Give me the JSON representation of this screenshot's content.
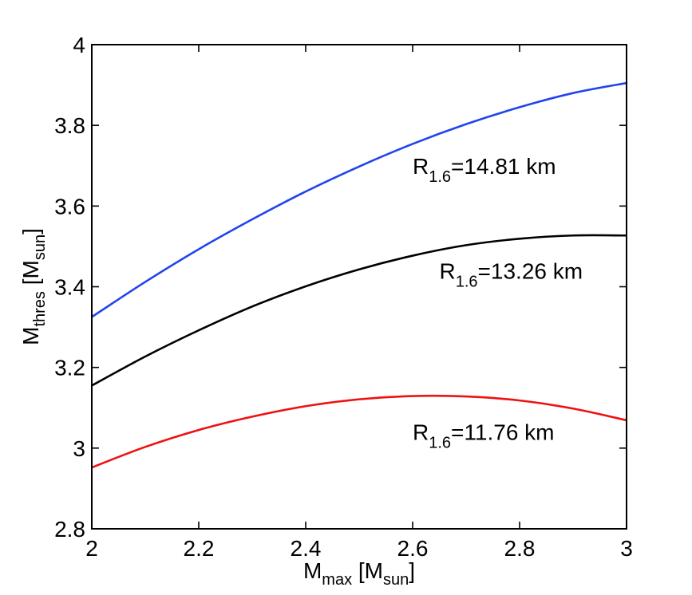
{
  "chart_data": {
    "type": "line",
    "xlabel": {
      "main": "M",
      "sub": "max",
      "unit_open": " [M",
      "unit_sub": "sun",
      "unit_close": "]"
    },
    "ylabel": {
      "main": "M",
      "sub": "thres",
      "unit_open": " [M",
      "unit_sub": "sun",
      "unit_close": "]"
    },
    "xlim": [
      2,
      3
    ],
    "ylim": [
      2.8,
      4
    ],
    "xticks": [
      2,
      2.2,
      2.4,
      2.6,
      2.8,
      3
    ],
    "xtick_labels": [
      "2",
      "2.2",
      "2.4",
      "2.6",
      "2.8",
      "3"
    ],
    "yticks": [
      2.8,
      3,
      3.2,
      3.4,
      3.6,
      3.8,
      4
    ],
    "ytick_labels": [
      "2.8",
      "3",
      "3.2",
      "3.4",
      "3.6",
      "3.8",
      "4"
    ],
    "grid": false,
    "series": [
      {
        "color": "#2244ee",
        "x": [
          2.0,
          2.1,
          2.2,
          2.3,
          2.4,
          2.5,
          2.6,
          2.7,
          2.8,
          2.9,
          3.0
        ],
        "values": [
          3.325,
          3.412,
          3.493,
          3.567,
          3.636,
          3.698,
          3.754,
          3.803,
          3.845,
          3.88,
          3.905
        ]
      },
      {
        "color": "#000000",
        "x": [
          2.0,
          2.1,
          2.2,
          2.3,
          2.4,
          2.5,
          2.6,
          2.7,
          2.8,
          2.9,
          3.0
        ],
        "values": [
          3.155,
          3.227,
          3.292,
          3.351,
          3.401,
          3.443,
          3.477,
          3.503,
          3.519,
          3.527,
          3.527
        ]
      },
      {
        "color": "#ee1111",
        "x": [
          2.0,
          2.1,
          2.2,
          2.3,
          2.4,
          2.5,
          2.6,
          2.7,
          2.8,
          2.9,
          3.0
        ],
        "values": [
          2.952,
          3.003,
          3.045,
          3.078,
          3.104,
          3.121,
          3.129,
          3.128,
          3.118,
          3.098,
          3.069
        ]
      }
    ],
    "annotations": [
      {
        "x": 2.6,
        "y": 3.68,
        "prefix": "R",
        "sub": "1.6",
        "suffix": "=14.81 km"
      },
      {
        "x": 2.65,
        "y": 3.42,
        "prefix": "R",
        "sub": "1.6",
        "suffix": "=13.26 km"
      },
      {
        "x": 2.6,
        "y": 3.02,
        "prefix": "R",
        "sub": "1.6",
        "suffix": "=11.76 km"
      }
    ]
  }
}
